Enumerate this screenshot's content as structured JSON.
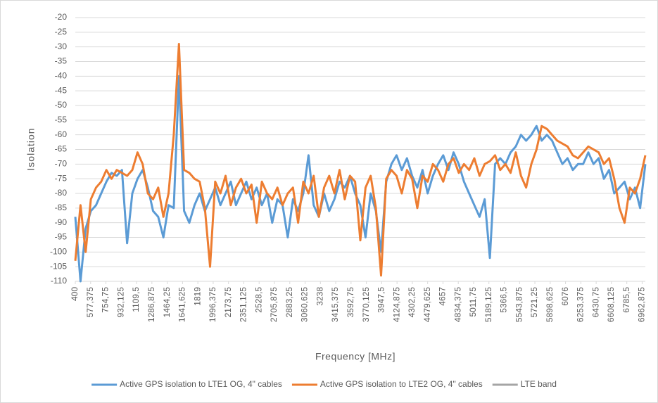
{
  "chart_data": {
    "type": "line",
    "axis_labels": {
      "x": "Frequency [MHz]",
      "y": "Isolation"
    },
    "x": [
      400,
      460,
      520,
      580,
      640,
      700,
      760,
      820,
      880,
      940,
      1000,
      1060,
      1120,
      1180,
      1240,
      1300,
      1360,
      1420,
      1480,
      1540,
      1600,
      1660,
      1720,
      1780,
      1840,
      1900,
      1960,
      2020,
      2080,
      2140,
      2200,
      2260,
      2320,
      2380,
      2440,
      2500,
      2560,
      2620,
      2680,
      2740,
      2800,
      2860,
      2920,
      2980,
      3040,
      3100,
      3160,
      3220,
      3280,
      3340,
      3400,
      3460,
      3520,
      3580,
      3640,
      3700,
      3760,
      3820,
      3880,
      3940,
      4000,
      4060,
      4120,
      4180,
      4240,
      4300,
      4360,
      4420,
      4480,
      4540,
      4600,
      4660,
      4720,
      4780,
      4840,
      4900,
      4960,
      5020,
      5080,
      5140,
      5200,
      5260,
      5320,
      5380,
      5440,
      5500,
      5560,
      5620,
      5680,
      5740,
      5800,
      5860,
      5920,
      5980,
      6040,
      6100,
      6160,
      6220,
      6280,
      6340,
      6400,
      6460,
      6520,
      6580,
      6640,
      6700,
      6760,
      6820,
      6880,
      6940,
      7000
    ],
    "series": [
      {
        "name": "Active GPS isolation to LTE1 OG, 4\" cables",
        "color": "#5b9bd5",
        "values": [
          -88,
          -110,
          -92,
          -86,
          -84,
          -80,
          -76,
          -73,
          -74,
          -72,
          -97,
          -80,
          -75,
          -72,
          -78,
          -86,
          -88,
          -95,
          -84,
          -85,
          -40,
          -86,
          -90,
          -84,
          -80,
          -86,
          -82,
          -78,
          -84,
          -80,
          -76,
          -84,
          -80,
          -76,
          -82,
          -78,
          -84,
          -80,
          -90,
          -82,
          -84,
          -95,
          -82,
          -86,
          -80,
          -67,
          -84,
          -88,
          -80,
          -86,
          -82,
          -76,
          -78,
          -74,
          -80,
          -84,
          -95,
          -80,
          -86,
          -100,
          -76,
          -70,
          -67,
          -72,
          -68,
          -74,
          -78,
          -72,
          -80,
          -74,
          -70,
          -67,
          -72,
          -66,
          -70,
          -76,
          -80,
          -84,
          -88,
          -82,
          -102,
          -70,
          -68,
          -70,
          -66,
          -64,
          -60,
          -62,
          -60,
          -57,
          -62,
          -60,
          -62,
          -66,
          -70,
          -68,
          -72,
          -70,
          -70,
          -66,
          -70,
          -68,
          -75,
          -72,
          -80,
          -78,
          -76,
          -82,
          -78,
          -85,
          -70
        ]
      },
      {
        "name": "Active GPS isolation to LTE2 OG, 4\" cables",
        "color": "#ed7d31",
        "values": [
          -103,
          -84,
          -100,
          -82,
          -78,
          -76,
          -72,
          -75,
          -72,
          -73,
          -74,
          -72,
          -66,
          -70,
          -80,
          -82,
          -78,
          -88,
          -80,
          -60,
          -29,
          -72,
          -73,
          -75,
          -76,
          -85,
          -105,
          -76,
          -80,
          -74,
          -84,
          -78,
          -75,
          -80,
          -77,
          -90,
          -76,
          -80,
          -82,
          -78,
          -84,
          -80,
          -78,
          -90,
          -76,
          -80,
          -74,
          -88,
          -78,
          -74,
          -80,
          -72,
          -82,
          -74,
          -76,
          -96,
          -78,
          -74,
          -85,
          -108,
          -75,
          -72,
          -74,
          -80,
          -72,
          -75,
          -85,
          -74,
          -76,
          -70,
          -72,
          -76,
          -70,
          -68,
          -73,
          -70,
          -72,
          -68,
          -74,
          -70,
          -69,
          -67,
          -72,
          -70,
          -73,
          -66,
          -74,
          -78,
          -70,
          -65,
          -57,
          -58,
          -60,
          -62,
          -63,
          -64,
          -67,
          -68,
          -66,
          -64,
          -65,
          -66,
          -70,
          -68,
          -75,
          -85,
          -90,
          -78,
          -80,
          -75,
          -67
        ]
      },
      {
        "name": "LTE band",
        "color": "#a5a5a5",
        "values": [
          null,
          null,
          null,
          null,
          null,
          null,
          null,
          null,
          null,
          null,
          null,
          null,
          null,
          null,
          null,
          null,
          null,
          null,
          null,
          null,
          null,
          null,
          null,
          null,
          null,
          null,
          null,
          null,
          null,
          null,
          null,
          null,
          null,
          null,
          null,
          null,
          null,
          null,
          null,
          null,
          null,
          null,
          null,
          null,
          null,
          null,
          null,
          null,
          null,
          null,
          null,
          null,
          null,
          null,
          null,
          null,
          null,
          null,
          null,
          null,
          null,
          null,
          null,
          null,
          null,
          null,
          null,
          null,
          null,
          null,
          null,
          null,
          null,
          null,
          null,
          null,
          null,
          null,
          null,
          null,
          null,
          null,
          null,
          null,
          null,
          null,
          null,
          null,
          null,
          null,
          null,
          null,
          null,
          null,
          null,
          null,
          null,
          null,
          null,
          null,
          null,
          null,
          null,
          null,
          null,
          null,
          null,
          null,
          null,
          null,
          null
        ]
      }
    ],
    "xlim": [
      400,
      7000
    ],
    "xticks": [
      400,
      {
        "value": 577.375,
        "label": "577,375"
      },
      {
        "value": 754.75,
        "label": "754,75"
      },
      {
        "value": 932.125,
        "label": "932,125"
      },
      {
        "value": 1109.5,
        "label": "1109,5"
      },
      {
        "value": 1286.875,
        "label": "1286,875"
      },
      {
        "value": 1464.25,
        "label": "1464,25"
      },
      {
        "value": 1641.625,
        "label": "1641,625"
      },
      1819,
      {
        "value": 1996.375,
        "label": "1996,375"
      },
      {
        "value": 2173.75,
        "label": "2173,75"
      },
      {
        "value": 2351.125,
        "label": "2351,125"
      },
      {
        "value": 2528.5,
        "label": "2528,5"
      },
      {
        "value": 2705.875,
        "label": "2705,875"
      },
      {
        "value": 2883.25,
        "label": "2883,25"
      },
      {
        "value": 3060.625,
        "label": "3060,625"
      },
      3238,
      {
        "value": 3415.375,
        "label": "3415,375"
      },
      {
        "value": 3592.75,
        "label": "3592,75"
      },
      {
        "value": 3770.125,
        "label": "3770,125"
      },
      {
        "value": 3947.5,
        "label": "3947,5"
      },
      {
        "value": 4124.875,
        "label": "4124,875"
      },
      {
        "value": 4302.25,
        "label": "4302,25"
      },
      {
        "value": 4479.625,
        "label": "4479,625"
      },
      4657,
      {
        "value": 4834.375,
        "label": "4834,375"
      },
      {
        "value": 5011.75,
        "label": "5011,75"
      },
      {
        "value": 5189.125,
        "label": "5189,125"
      },
      {
        "value": 5366.5,
        "label": "5366,5"
      },
      {
        "value": 5543.875,
        "label": "5543,875"
      },
      {
        "value": 5721.25,
        "label": "5721,25"
      },
      {
        "value": 5898.625,
        "label": "5898,625"
      },
      6076,
      {
        "value": 6253.375,
        "label": "6253,375"
      },
      {
        "value": 6430.75,
        "label": "6430,75"
      },
      {
        "value": 6608.125,
        "label": "6608,125"
      },
      {
        "value": 6785.5,
        "label": "6785,5"
      },
      {
        "value": 6962.875,
        "label": "6962,875"
      }
    ],
    "ylim": [
      -110,
      -20
    ],
    "yticks": [
      -110,
      -105,
      -100,
      -95,
      -90,
      -85,
      -80,
      -75,
      -70,
      -65,
      -60,
      -55,
      -50,
      -45,
      -40,
      -35,
      -30,
      -25,
      -20
    ],
    "grid": true,
    "legend": "bottom"
  }
}
